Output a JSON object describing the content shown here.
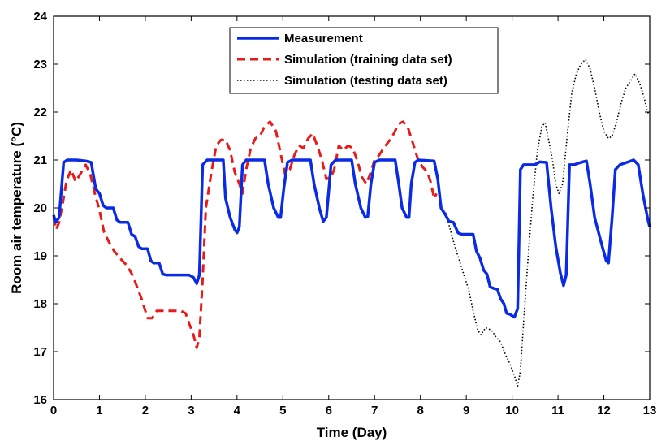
{
  "chart_data": {
    "type": "line",
    "xlabel": "Time (Day)",
    "ylabel": "Room air temperature (°C)",
    "xlim": [
      0,
      13
    ],
    "ylim": [
      16,
      24
    ],
    "xticks": [
      "0",
      "1",
      "2",
      "3",
      "4",
      "5",
      "6",
      "7",
      "8",
      "9",
      "10",
      "11",
      "12",
      "13"
    ],
    "yticks": [
      "16",
      "17",
      "18",
      "19",
      "20",
      "21",
      "22",
      "23",
      "24"
    ],
    "grid": false,
    "legend_position": "top-center",
    "series": [
      {
        "name": "Measurement",
        "color": "#0a2be6",
        "style": "solid",
        "points": [
          [
            0,
            19.85
          ],
          [
            0.05,
            19.7
          ],
          [
            0.12,
            19.8
          ],
          [
            0.22,
            20.95
          ],
          [
            0.3,
            21.0
          ],
          [
            0.5,
            21.0
          ],
          [
            0.7,
            20.98
          ],
          [
            0.82,
            20.95
          ],
          [
            0.92,
            20.4
          ],
          [
            1.0,
            20.3
          ],
          [
            1.08,
            20.05
          ],
          [
            1.15,
            20.0
          ],
          [
            1.3,
            20.0
          ],
          [
            1.38,
            19.75
          ],
          [
            1.45,
            19.7
          ],
          [
            1.62,
            19.7
          ],
          [
            1.7,
            19.45
          ],
          [
            1.78,
            19.4
          ],
          [
            1.85,
            19.2
          ],
          [
            1.92,
            19.15
          ],
          [
            2.05,
            19.15
          ],
          [
            2.12,
            18.9
          ],
          [
            2.18,
            18.85
          ],
          [
            2.3,
            18.85
          ],
          [
            2.38,
            18.62
          ],
          [
            2.45,
            18.6
          ],
          [
            2.7,
            18.6
          ],
          [
            2.95,
            18.6
          ],
          [
            3.05,
            18.55
          ],
          [
            3.12,
            18.42
          ],
          [
            3.18,
            18.6
          ],
          [
            3.25,
            20.9
          ],
          [
            3.35,
            21.0
          ],
          [
            3.7,
            21.0
          ],
          [
            3.75,
            20.2
          ],
          [
            3.85,
            19.8
          ],
          [
            3.95,
            19.55
          ],
          [
            4.0,
            19.48
          ],
          [
            4.05,
            19.6
          ],
          [
            4.12,
            20.9
          ],
          [
            4.2,
            21.0
          ],
          [
            4.6,
            21.0
          ],
          [
            4.68,
            20.5
          ],
          [
            4.8,
            20.0
          ],
          [
            4.9,
            19.8
          ],
          [
            4.95,
            19.8
          ],
          [
            5.02,
            20.4
          ],
          [
            5.1,
            20.95
          ],
          [
            5.2,
            21.0
          ],
          [
            5.6,
            21.0
          ],
          [
            5.68,
            20.5
          ],
          [
            5.8,
            19.98
          ],
          [
            5.88,
            19.72
          ],
          [
            5.95,
            19.8
          ],
          [
            6.05,
            20.9
          ],
          [
            6.15,
            21.0
          ],
          [
            6.5,
            21.0
          ],
          [
            6.58,
            20.5
          ],
          [
            6.7,
            20.0
          ],
          [
            6.8,
            19.8
          ],
          [
            6.85,
            19.82
          ],
          [
            6.92,
            20.5
          ],
          [
            7.0,
            20.95
          ],
          [
            7.1,
            21.0
          ],
          [
            7.45,
            21.0
          ],
          [
            7.52,
            20.55
          ],
          [
            7.6,
            20.0
          ],
          [
            7.7,
            19.8
          ],
          [
            7.75,
            19.8
          ],
          [
            7.8,
            20.5
          ],
          [
            7.88,
            20.95
          ],
          [
            7.95,
            21.0
          ],
          [
            8.3,
            20.98
          ],
          [
            8.38,
            20.6
          ],
          [
            8.45,
            20.0
          ],
          [
            8.55,
            19.85
          ],
          [
            8.62,
            19.72
          ],
          [
            8.72,
            19.7
          ],
          [
            8.82,
            19.48
          ],
          [
            8.9,
            19.45
          ],
          [
            9.15,
            19.45
          ],
          [
            9.22,
            19.1
          ],
          [
            9.3,
            18.95
          ],
          [
            9.38,
            18.7
          ],
          [
            9.45,
            18.62
          ],
          [
            9.52,
            18.35
          ],
          [
            9.6,
            18.32
          ],
          [
            9.68,
            18.3
          ],
          [
            9.75,
            18.1
          ],
          [
            9.82,
            18.0
          ],
          [
            9.88,
            17.8
          ],
          [
            9.95,
            17.78
          ],
          [
            10.05,
            17.72
          ],
          [
            10.12,
            17.9
          ],
          [
            10.18,
            20.8
          ],
          [
            10.25,
            20.9
          ],
          [
            10.5,
            20.9
          ],
          [
            10.6,
            20.96
          ],
          [
            10.75,
            20.95
          ],
          [
            10.85,
            20.0
          ],
          [
            10.95,
            19.2
          ],
          [
            11.05,
            18.65
          ],
          [
            11.12,
            18.38
          ],
          [
            11.18,
            18.6
          ],
          [
            11.25,
            20.9
          ],
          [
            11.35,
            20.9
          ],
          [
            11.5,
            20.95
          ],
          [
            11.62,
            20.98
          ],
          [
            11.7,
            20.5
          ],
          [
            11.8,
            19.8
          ],
          [
            11.95,
            19.25
          ],
          [
            12.05,
            18.9
          ],
          [
            12.1,
            18.85
          ],
          [
            12.18,
            19.8
          ],
          [
            12.25,
            20.8
          ],
          [
            12.35,
            20.9
          ],
          [
            12.5,
            20.95
          ],
          [
            12.65,
            21.0
          ],
          [
            12.75,
            20.9
          ],
          [
            12.85,
            20.3
          ],
          [
            12.95,
            19.8
          ],
          [
            13.0,
            19.6
          ]
        ]
      },
      {
        "name": "Simulation (training data set)",
        "color": "#e81a1a",
        "style": "dashed",
        "points": [
          [
            0,
            19.8
          ],
          [
            0.06,
            19.55
          ],
          [
            0.12,
            19.7
          ],
          [
            0.2,
            20.1
          ],
          [
            0.28,
            20.55
          ],
          [
            0.38,
            20.8
          ],
          [
            0.48,
            20.55
          ],
          [
            0.58,
            20.7
          ],
          [
            0.7,
            20.9
          ],
          [
            0.8,
            20.7
          ],
          [
            0.9,
            20.3
          ],
          [
            1.0,
            19.95
          ],
          [
            1.1,
            19.5
          ],
          [
            1.2,
            19.3
          ],
          [
            1.32,
            19.1
          ],
          [
            1.45,
            18.95
          ],
          [
            1.6,
            18.8
          ],
          [
            1.72,
            18.6
          ],
          [
            1.82,
            18.35
          ],
          [
            1.92,
            18.1
          ],
          [
            2.05,
            17.7
          ],
          [
            2.15,
            17.7
          ],
          [
            2.25,
            17.85
          ],
          [
            2.4,
            17.85
          ],
          [
            2.6,
            17.85
          ],
          [
            2.78,
            17.85
          ],
          [
            2.88,
            17.8
          ],
          [
            2.95,
            17.6
          ],
          [
            3.05,
            17.35
          ],
          [
            3.12,
            17.08
          ],
          [
            3.18,
            17.3
          ],
          [
            3.25,
            18.5
          ],
          [
            3.32,
            20.0
          ],
          [
            3.45,
            20.8
          ],
          [
            3.55,
            21.3
          ],
          [
            3.65,
            21.42
          ],
          [
            3.75,
            21.42
          ],
          [
            3.85,
            21.2
          ],
          [
            3.95,
            20.75
          ],
          [
            4.05,
            20.5
          ],
          [
            4.12,
            20.3
          ],
          [
            4.2,
            20.8
          ],
          [
            4.3,
            21.25
          ],
          [
            4.4,
            21.45
          ],
          [
            4.5,
            21.5
          ],
          [
            4.6,
            21.7
          ],
          [
            4.72,
            21.8
          ],
          [
            4.85,
            21.6
          ],
          [
            4.98,
            21.0
          ],
          [
            5.05,
            20.7
          ],
          [
            5.15,
            20.8
          ],
          [
            5.25,
            21.1
          ],
          [
            5.35,
            21.3
          ],
          [
            5.45,
            21.25
          ],
          [
            5.55,
            21.45
          ],
          [
            5.65,
            21.55
          ],
          [
            5.75,
            21.3
          ],
          [
            5.85,
            21.0
          ],
          [
            5.95,
            20.6
          ],
          [
            6.05,
            20.65
          ],
          [
            6.12,
            20.8
          ],
          [
            6.22,
            21.3
          ],
          [
            6.32,
            21.2
          ],
          [
            6.42,
            21.3
          ],
          [
            6.52,
            21.25
          ],
          [
            6.62,
            21.0
          ],
          [
            6.72,
            20.65
          ],
          [
            6.82,
            20.5
          ],
          [
            6.92,
            20.75
          ],
          [
            7.0,
            21.0
          ],
          [
            7.1,
            21.1
          ],
          [
            7.2,
            21.25
          ],
          [
            7.32,
            21.4
          ],
          [
            7.42,
            21.55
          ],
          [
            7.52,
            21.75
          ],
          [
            7.62,
            21.8
          ],
          [
            7.72,
            21.7
          ],
          [
            7.82,
            21.4
          ],
          [
            7.95,
            21.0
          ],
          [
            8.05,
            20.85
          ],
          [
            8.15,
            20.75
          ],
          [
            8.22,
            20.55
          ],
          [
            8.3,
            20.2
          ],
          [
            8.35,
            20.3
          ]
        ]
      },
      {
        "name": "Simulation (testing data set)",
        "color": "#000000",
        "style": "dotted",
        "points": [
          [
            8.55,
            19.9
          ],
          [
            8.65,
            19.55
          ],
          [
            8.75,
            19.2
          ],
          [
            8.85,
            18.9
          ],
          [
            8.95,
            18.6
          ],
          [
            9.05,
            18.3
          ],
          [
            9.15,
            17.85
          ],
          [
            9.25,
            17.45
          ],
          [
            9.32,
            17.35
          ],
          [
            9.42,
            17.5
          ],
          [
            9.55,
            17.45
          ],
          [
            9.65,
            17.3
          ],
          [
            9.75,
            17.2
          ],
          [
            9.85,
            16.95
          ],
          [
            9.95,
            16.75
          ],
          [
            10.05,
            16.5
          ],
          [
            10.12,
            16.28
          ],
          [
            10.18,
            16.6
          ],
          [
            10.25,
            17.6
          ],
          [
            10.35,
            19.0
          ],
          [
            10.45,
            20.2
          ],
          [
            10.55,
            21.2
          ],
          [
            10.65,
            21.7
          ],
          [
            10.72,
            21.78
          ],
          [
            10.8,
            21.4
          ],
          [
            10.88,
            21.0
          ],
          [
            10.95,
            20.5
          ],
          [
            11.02,
            20.3
          ],
          [
            11.1,
            20.5
          ],
          [
            11.2,
            21.5
          ],
          [
            11.3,
            22.4
          ],
          [
            11.4,
            22.8
          ],
          [
            11.5,
            23.0
          ],
          [
            11.6,
            23.1
          ],
          [
            11.7,
            22.9
          ],
          [
            11.8,
            22.5
          ],
          [
            11.9,
            22.0
          ],
          [
            12.0,
            21.6
          ],
          [
            12.1,
            21.45
          ],
          [
            12.18,
            21.5
          ],
          [
            12.28,
            21.8
          ],
          [
            12.38,
            22.2
          ],
          [
            12.48,
            22.5
          ],
          [
            12.58,
            22.65
          ],
          [
            12.68,
            22.8
          ],
          [
            12.78,
            22.6
          ],
          [
            12.88,
            22.3
          ],
          [
            12.95,
            22.0
          ],
          [
            13.0,
            21.95
          ]
        ]
      }
    ]
  }
}
